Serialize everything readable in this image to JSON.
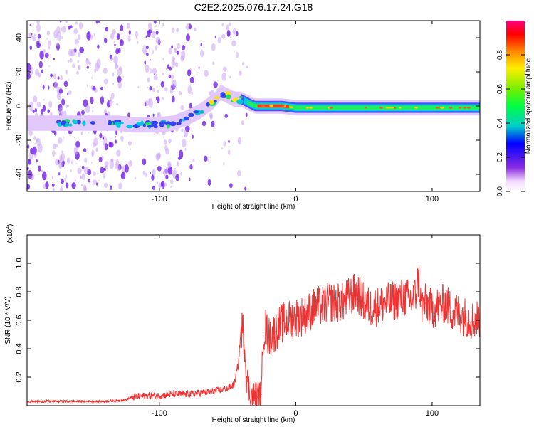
{
  "title": "C2E2.2025.076.17.24.G18",
  "chart_data": [
    {
      "type": "heatmap",
      "name": "spectrogram",
      "xlabel": "Height of straight line (km)",
      "ylabel": "Frequency (Hz)",
      "xlim": [
        -197,
        135
      ],
      "ylim": [
        -50,
        50
      ],
      "x_ticks": [
        -100,
        0,
        100
      ],
      "y_ticks": [
        -40,
        -20,
        0,
        20,
        40
      ],
      "colorbar": {
        "label": "Normalized spectral amplitude",
        "range": [
          0,
          1
        ],
        "ticks": [
          "0.0",
          "0.2",
          "0.4",
          "0.6",
          "0.8"
        ]
      },
      "ridge": {
        "x": [
          -197,
          -170,
          -160,
          -150,
          -130,
          -120,
          -110,
          -100,
          -90,
          -80,
          -75,
          -70,
          -65,
          -60,
          -55,
          -50,
          -45,
          -40,
          -35,
          -30,
          -20,
          -10,
          0,
          20,
          50,
          80,
          100,
          135
        ],
        "y": [
          -10,
          -10,
          -10,
          -10,
          -10,
          -11,
          -11,
          -11,
          -10,
          -7,
          -5,
          -3,
          0,
          3,
          8,
          6,
          4,
          4,
          2,
          0,
          0,
          0,
          -1,
          -1,
          -1,
          -1,
          -1,
          -1
        ]
      }
    },
    {
      "type": "line",
      "name": "snr",
      "xlabel": "Height of straight line (km)",
      "ylabel": "SNR (10 * V/V)",
      "y_multiplier": "(x10",
      "y_multiplier_exp": "4",
      "y_multiplier_close": ")",
      "xlim": [
        -197,
        135
      ],
      "ylim": [
        0,
        1.2
      ],
      "x_ticks": [
        -100,
        0,
        100
      ],
      "y_ticks": [
        0.2,
        0.4,
        0.6,
        0.8,
        1.0
      ],
      "y_tick_labels": [
        "0.2",
        "0.4",
        "0.6",
        "0.8",
        "1.0"
      ],
      "series": [
        {
          "color": "#ee3333",
          "x": [
            -197,
            -180,
            -160,
            -140,
            -125,
            -120,
            -110,
            -100,
            -90,
            -80,
            -70,
            -60,
            -50,
            -45,
            -42,
            -40,
            -38,
            -36,
            -34,
            -32,
            -30,
            -28,
            -26,
            -25,
            -24,
            -22,
            -20,
            -15,
            -10,
            -5,
            0,
            5,
            10,
            15,
            20,
            25,
            30,
            35,
            40,
            45,
            50,
            55,
            60,
            65,
            70,
            75,
            80,
            85,
            88,
            90,
            92,
            95,
            100,
            105,
            110,
            115,
            120,
            125,
            130,
            135
          ],
          "y": [
            0.03,
            0.03,
            0.03,
            0.03,
            0.04,
            0.06,
            0.07,
            0.07,
            0.08,
            0.08,
            0.09,
            0.1,
            0.12,
            0.15,
            0.3,
            0.55,
            0.5,
            0.2,
            0.1,
            0.06,
            0.06,
            0.06,
            0.06,
            0.08,
            0.5,
            0.55,
            0.48,
            0.52,
            0.58,
            0.6,
            0.62,
            0.63,
            0.66,
            0.7,
            0.7,
            0.73,
            0.72,
            0.73,
            0.77,
            0.8,
            0.72,
            0.69,
            0.7,
            0.72,
            0.73,
            0.75,
            0.76,
            0.74,
            0.78,
            0.9,
            0.7,
            0.72,
            0.68,
            0.7,
            0.72,
            0.66,
            0.65,
            0.62,
            0.6,
            0.62
          ]
        }
      ]
    }
  ]
}
